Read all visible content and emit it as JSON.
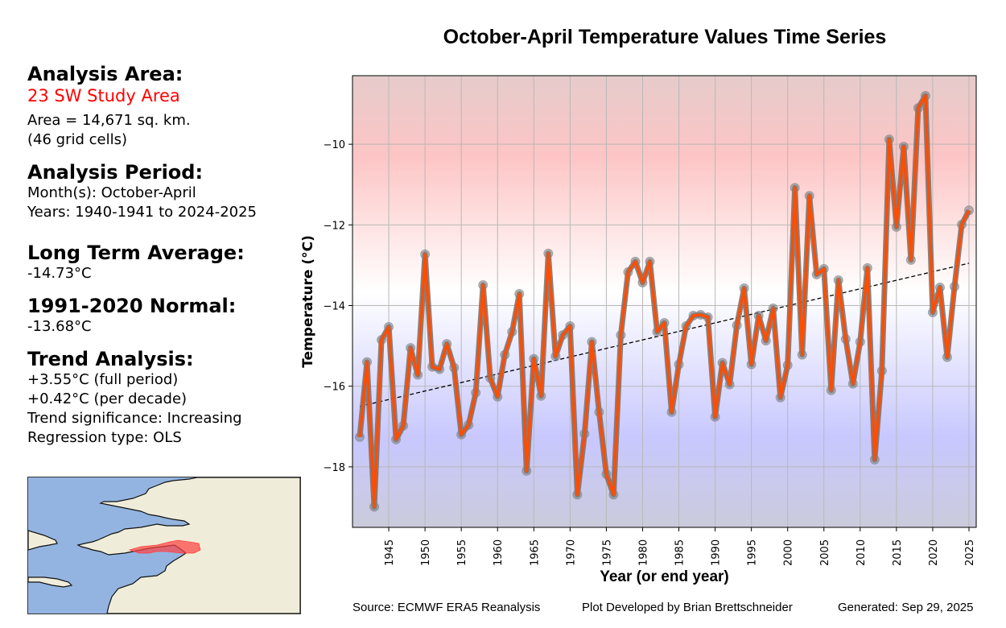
{
  "panel": {
    "area_heading": "Analysis Area:",
    "area_name": "23 SW Study Area",
    "area_size": "Area = 14,671 sq. km.",
    "grid_cells": "(46 grid cells)",
    "period_heading": "Analysis Period:",
    "months": "Month(s): October-April",
    "years": "Years: 1940-1941 to 2024-2025",
    "lta_heading": "Long Term Average:",
    "lta_value": "-14.73°C",
    "normal_heading": "1991-2020 Normal:",
    "normal_value": "-13.68°C",
    "trend_heading": "Trend Analysis:",
    "trend_full": "+3.55°C (full period)",
    "trend_decade": "+0.42°C (per decade)",
    "trend_significance": "Trend significance: Increasing",
    "regression_type": "Regression type: OLS"
  },
  "colors": {
    "line": "#ff4d00",
    "marker": "#808080",
    "warm": "#ffc8c8",
    "cold": "#c8c8ff",
    "area_highlight": "#ff4040",
    "land": "#efedda",
    "water": "#93b4e0"
  },
  "footer": {
    "source": "Source: ECMWF ERA5 Reanalysis",
    "developer": "Plot Developed by Brian Brettschneider",
    "generated": "Generated: Sep 29, 2025"
  },
  "chart_data": {
    "type": "line",
    "title": "October-April Temperature Values Time Series",
    "xlabel": "Year (or end year)",
    "ylabel": "Temperature (°C)",
    "xlim": [
      1940,
      2026
    ],
    "ylim": [
      -19.5,
      -8.3
    ],
    "xticks": [
      1945,
      1950,
      1955,
      1960,
      1965,
      1970,
      1975,
      1980,
      1985,
      1990,
      1995,
      2000,
      2005,
      2010,
      2015,
      2020,
      2025
    ],
    "yticks": [
      -10,
      -12,
      -14,
      -16,
      -18
    ],
    "ytick_labels": [
      "−10",
      "−12",
      "−14",
      "−16",
      "−18"
    ],
    "grid": true,
    "x": [
      1941,
      1942,
      1943,
      1944,
      1945,
      1946,
      1947,
      1948,
      1949,
      1950,
      1951,
      1952,
      1953,
      1954,
      1955,
      1956,
      1957,
      1958,
      1959,
      1960,
      1961,
      1962,
      1963,
      1964,
      1965,
      1966,
      1967,
      1968,
      1969,
      1970,
      1971,
      1972,
      1973,
      1974,
      1975,
      1976,
      1977,
      1978,
      1979,
      1980,
      1981,
      1982,
      1983,
      1984,
      1985,
      1986,
      1987,
      1988,
      1989,
      1990,
      1991,
      1992,
      1993,
      1994,
      1995,
      1996,
      1997,
      1998,
      1999,
      2000,
      2001,
      2002,
      2003,
      2004,
      2005,
      2006,
      2007,
      2008,
      2009,
      2010,
      2011,
      2012,
      2013,
      2014,
      2015,
      2016,
      2017,
      2018,
      2019,
      2020,
      2021,
      2022,
      2023,
      2024,
      2025
    ],
    "series": [
      {
        "name": "October-April Temperature",
        "values": [
          -17.26,
          -15.4,
          -18.99,
          -14.85,
          -14.53,
          -17.32,
          -16.98,
          -15.05,
          -15.72,
          -12.73,
          -15.52,
          -15.58,
          -14.95,
          -15.54,
          -17.2,
          -16.96,
          -16.16,
          -13.49,
          -15.8,
          -16.26,
          -15.22,
          -14.65,
          -13.71,
          -18.1,
          -15.32,
          -16.24,
          -12.71,
          -15.26,
          -14.73,
          -14.51,
          -18.69,
          -17.18,
          -14.9,
          -16.64,
          -18.18,
          -18.69,
          -14.73,
          -13.17,
          -12.91,
          -13.43,
          -12.91,
          -14.65,
          -14.43,
          -16.64,
          -15.46,
          -14.51,
          -14.25,
          -14.23,
          -14.29,
          -16.76,
          -15.42,
          -15.96,
          -14.49,
          -13.57,
          -15.46,
          -14.25,
          -14.87,
          -14.07,
          -16.28,
          -15.48,
          -11.08,
          -15.22,
          -11.28,
          -13.23,
          -13.09,
          -16.1,
          -13.37,
          -14.83,
          -15.94,
          -14.9,
          -13.07,
          -17.82,
          -15.62,
          -9.88,
          -12.05,
          -10.06,
          -12.87,
          -9.1,
          -8.8,
          -14.17,
          -13.55,
          -15.28,
          -13.53,
          -11.99,
          -11.64
        ]
      }
    ],
    "trend": {
      "name": "OLS trend",
      "x": [
        1941,
        2025
      ],
      "values": [
        -16.5,
        -12.95
      ]
    }
  }
}
